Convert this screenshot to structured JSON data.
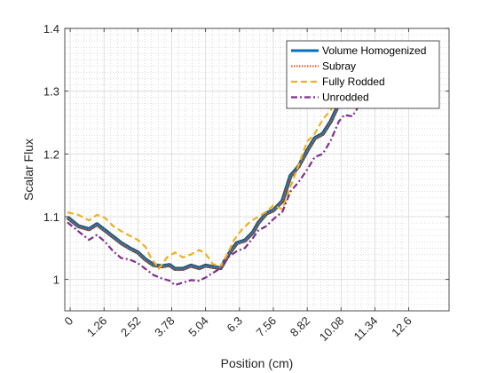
{
  "chart_data": {
    "type": "line",
    "title": "",
    "xlabel": "Position (cm)",
    "ylabel": "Scalar Flux",
    "xlim": [
      -0.2,
      14.1
    ],
    "ylim": [
      0.95,
      1.4
    ],
    "xticks": [
      0,
      1.26,
      2.52,
      3.78,
      5.04,
      6.3,
      7.56,
      8.82,
      10.08,
      11.34,
      12.6
    ],
    "xtick_labels": [
      "0",
      "1.26",
      "2.52",
      "3.78",
      "5.04",
      "6.3",
      "7.56",
      "8.82",
      "10.08",
      "11.34",
      "12.6"
    ],
    "yticks": [
      1,
      1.1,
      1.2,
      1.3,
      1.4
    ],
    "ytick_labels": [
      "1",
      "1.1",
      "1.2",
      "1.3",
      "1.4"
    ],
    "grid": true,
    "minor_grid": true,
    "legend_position": "top-right",
    "series": [
      {
        "name": "Volume Homogenized",
        "color": "#0072BD",
        "style": "solid",
        "x": [
          -0.1,
          0.3,
          0.7,
          1.0,
          1.3,
          1.6,
          1.9,
          2.2,
          2.52,
          2.8,
          3.1,
          3.4,
          3.7,
          3.9,
          4.2,
          4.5,
          4.8,
          5.04,
          5.3,
          5.6,
          5.9,
          6.2,
          6.5,
          6.8,
          7.0,
          7.3,
          7.56,
          7.9,
          8.2,
          8.5,
          8.82,
          9.1,
          9.4,
          9.7,
          10.0,
          10.2
        ],
        "y": [
          1.099,
          1.085,
          1.08,
          1.088,
          1.078,
          1.068,
          1.058,
          1.05,
          1.043,
          1.032,
          1.023,
          1.021,
          1.023,
          1.017,
          1.017,
          1.022,
          1.018,
          1.022,
          1.02,
          1.018,
          1.04,
          1.058,
          1.062,
          1.075,
          1.09,
          1.105,
          1.11,
          1.125,
          1.165,
          1.18,
          1.205,
          1.225,
          1.232,
          1.252,
          1.28,
          1.3
        ]
      },
      {
        "name": "Subray",
        "color": "#D95319",
        "style": "dotted",
        "x": [
          -0.1,
          0.3,
          0.7,
          1.0,
          1.3,
          1.6,
          1.9,
          2.2,
          2.52,
          2.8,
          3.1,
          3.4,
          3.7,
          3.9,
          4.2,
          4.5,
          4.8,
          5.04,
          5.3,
          5.6,
          5.9,
          6.2,
          6.5,
          6.8,
          7.0,
          7.3,
          7.56,
          7.9,
          8.2,
          8.5,
          8.82,
          9.1,
          9.4,
          9.7,
          10.0,
          10.2
        ],
        "y": [
          1.098,
          1.084,
          1.079,
          1.087,
          1.077,
          1.067,
          1.057,
          1.049,
          1.042,
          1.031,
          1.022,
          1.02,
          1.022,
          1.016,
          1.016,
          1.021,
          1.017,
          1.021,
          1.019,
          1.017,
          1.039,
          1.057,
          1.061,
          1.074,
          1.089,
          1.104,
          1.109,
          1.124,
          1.164,
          1.179,
          1.204,
          1.224,
          1.231,
          1.251,
          1.279,
          1.299
        ]
      },
      {
        "name": "Fully Rodded",
        "color": "#EDB120",
        "style": "dashed",
        "x": [
          -0.1,
          0.3,
          0.7,
          1.0,
          1.3,
          1.6,
          1.9,
          2.2,
          2.52,
          2.8,
          3.0,
          3.3,
          3.6,
          3.9,
          4.2,
          4.5,
          4.8,
          5.04,
          5.3,
          5.6,
          5.9,
          6.1,
          6.4,
          6.7,
          7.0,
          7.3,
          7.56,
          7.9,
          8.2,
          8.5,
          8.82,
          9.1,
          9.4,
          9.7,
          10.0,
          10.2
        ],
        "y": [
          1.107,
          1.103,
          1.094,
          1.103,
          1.098,
          1.085,
          1.077,
          1.07,
          1.063,
          1.052,
          1.035,
          1.017,
          1.035,
          1.043,
          1.035,
          1.04,
          1.047,
          1.041,
          1.025,
          1.02,
          1.045,
          1.063,
          1.08,
          1.092,
          1.1,
          1.108,
          1.118,
          1.112,
          1.148,
          1.182,
          1.22,
          1.232,
          1.255,
          1.27,
          1.3,
          1.318
        ]
      },
      {
        "name": "Unrodded",
        "color": "#7E2F8E",
        "style": "dashdot",
        "x": [
          -0.1,
          0.3,
          0.7,
          1.0,
          1.3,
          1.6,
          1.9,
          2.2,
          2.52,
          2.8,
          3.1,
          3.4,
          3.7,
          3.9,
          4.2,
          4.5,
          4.8,
          5.04,
          5.3,
          5.6,
          5.9,
          6.2,
          6.5,
          6.8,
          7.0,
          7.3,
          7.56,
          7.9,
          8.2,
          8.5,
          8.82,
          9.1,
          9.4,
          9.7,
          10.0,
          10.2,
          10.5,
          10.8,
          11.0
        ],
        "y": [
          1.091,
          1.077,
          1.063,
          1.071,
          1.06,
          1.045,
          1.034,
          1.032,
          1.026,
          1.017,
          1.007,
          1.002,
          0.998,
          0.991,
          0.995,
          0.999,
          0.998,
          1.003,
          1.01,
          1.018,
          1.036,
          1.045,
          1.05,
          1.066,
          1.078,
          1.085,
          1.096,
          1.108,
          1.14,
          1.155,
          1.175,
          1.195,
          1.2,
          1.222,
          1.252,
          1.262,
          1.26,
          1.28,
          1.3
        ]
      }
    ]
  }
}
